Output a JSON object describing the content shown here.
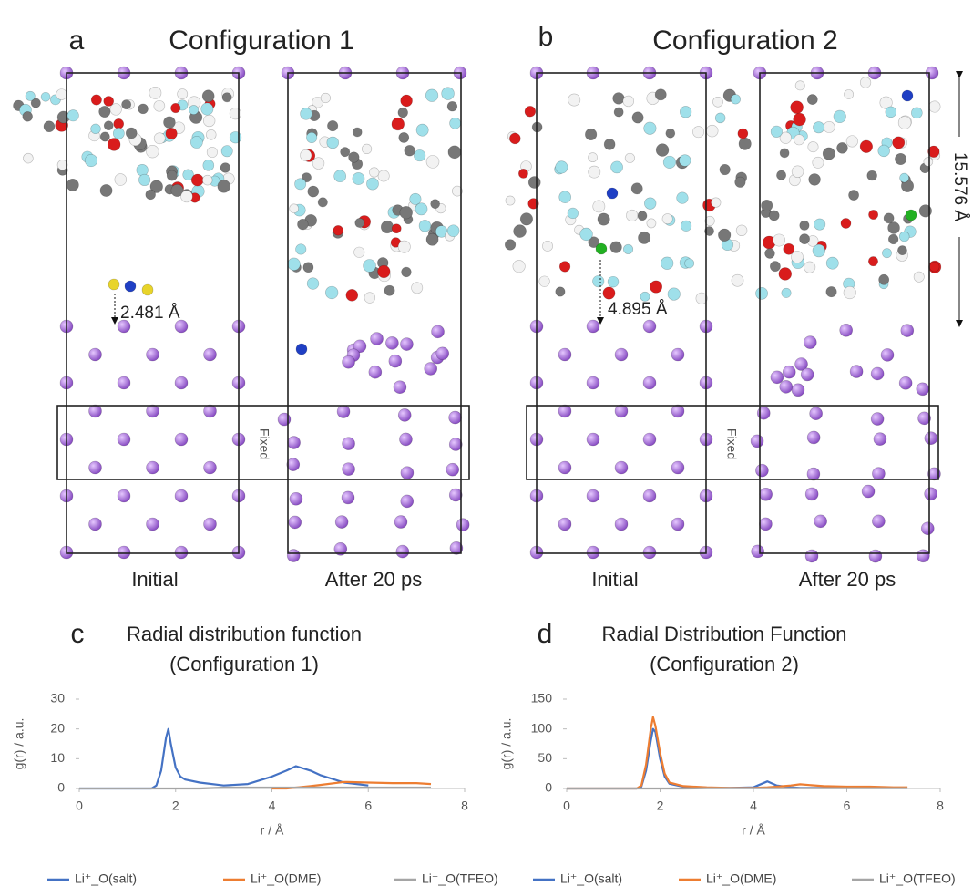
{
  "panels": [
    {
      "letter": "a",
      "title": "Configuration 1",
      "labels": [
        "Initial",
        "After 20 ps"
      ],
      "fixed": "Fixed",
      "distance": "2.481 Å"
    },
    {
      "letter": "b",
      "title": "Configuration 2",
      "labels": [
        "Initial",
        "After 20 ps"
      ],
      "fixed": "Fixed",
      "distance": "4.895 Å",
      "height": "15.576 Å"
    }
  ],
  "chart_data": [
    {
      "type": "line",
      "letter": "c",
      "title": "Radial distribution function",
      "subtitle": "(Configuration 1)",
      "x_label": "r / Å",
      "y_label": "g(r) / a.u.",
      "x": [
        0,
        1.5,
        1.6,
        1.7,
        1.8,
        1.85,
        1.9,
        2.0,
        2.1,
        2.2,
        2.5,
        3,
        3.5,
        4,
        4.3,
        4.5,
        4.8,
        5,
        5.5,
        6,
        6.5,
        7,
        7.3
      ],
      "series": [
        {
          "name": "Li⁺_O(salt)",
          "color": "#4472c4",
          "values": [
            0,
            0,
            1,
            6,
            17,
            20,
            15,
            7,
            4,
            3,
            2,
            1,
            1.5,
            4,
            6,
            7.5,
            6,
            4.5,
            2,
            1,
            null,
            null,
            null
          ]
        },
        {
          "name": "Li⁺_O(DME)",
          "color": "#ed7d31",
          "values": [
            null,
            null,
            null,
            null,
            null,
            null,
            null,
            null,
            null,
            null,
            null,
            null,
            null,
            0,
            0,
            0.3,
            0.8,
            1.2,
            2.2,
            2,
            1.8,
            1.8,
            1.5
          ]
        },
        {
          "name": "Li⁺_O(TFEO)",
          "color": "#a5a5a5",
          "values": [
            0,
            0,
            0,
            0,
            0,
            0,
            0,
            0,
            0,
            0,
            0,
            0.3,
            0.3,
            0.3,
            0.3,
            0.3,
            0.3,
            0.3,
            0.3,
            0.3,
            0.3,
            0.3,
            0.3
          ]
        }
      ],
      "xlim": [
        0,
        8
      ],
      "xticks": [
        0,
        2,
        4,
        6,
        8
      ],
      "ylim": [
        0,
        30
      ],
      "yticks": [
        0,
        10,
        20,
        30
      ],
      "legend": "bottom"
    },
    {
      "type": "line",
      "letter": "d",
      "title": "Radial Distribution Function",
      "subtitle": "(Configuration 2)",
      "x_label": "r / Å",
      "y_label": "g(r) / a.u.",
      "x": [
        0,
        1.5,
        1.6,
        1.7,
        1.8,
        1.85,
        1.9,
        2.0,
        2.1,
        2.2,
        2.5,
        3,
        3.5,
        4,
        4.3,
        4.5,
        4.8,
        5,
        5.5,
        6,
        6.5,
        7,
        7.3
      ],
      "series": [
        {
          "name": "Li⁺_O(salt)",
          "color": "#4472c4",
          "values": [
            0,
            0,
            3,
            30,
            80,
            100,
            95,
            50,
            20,
            8,
            3,
            1,
            1,
            2,
            12,
            5,
            2,
            1,
            1,
            1,
            1,
            1,
            null
          ]
        },
        {
          "name": "Li⁺_O(DME)",
          "color": "#ed7d31",
          "values": [
            0,
            0,
            5,
            40,
            100,
            120,
            105,
            60,
            25,
            10,
            4,
            2,
            1,
            1,
            2,
            3,
            5,
            7,
            4,
            3,
            3,
            2,
            2
          ]
        },
        {
          "name": "Li⁺_O(TFEO)",
          "color": "#a5a5a5",
          "values": [
            0,
            0,
            0,
            0,
            0,
            0,
            0,
            0,
            0,
            0,
            0,
            0.5,
            0.5,
            0.5,
            0.5,
            0.5,
            0.5,
            0.5,
            0.5,
            0.5,
            0.5,
            0.5,
            0.5
          ]
        }
      ],
      "xlim": [
        0,
        8
      ],
      "xticks": [
        0,
        2,
        4,
        6,
        8
      ],
      "ylim": [
        0,
        150
      ],
      "yticks": [
        0,
        50,
        100,
        150
      ],
      "legend": "bottom"
    }
  ]
}
